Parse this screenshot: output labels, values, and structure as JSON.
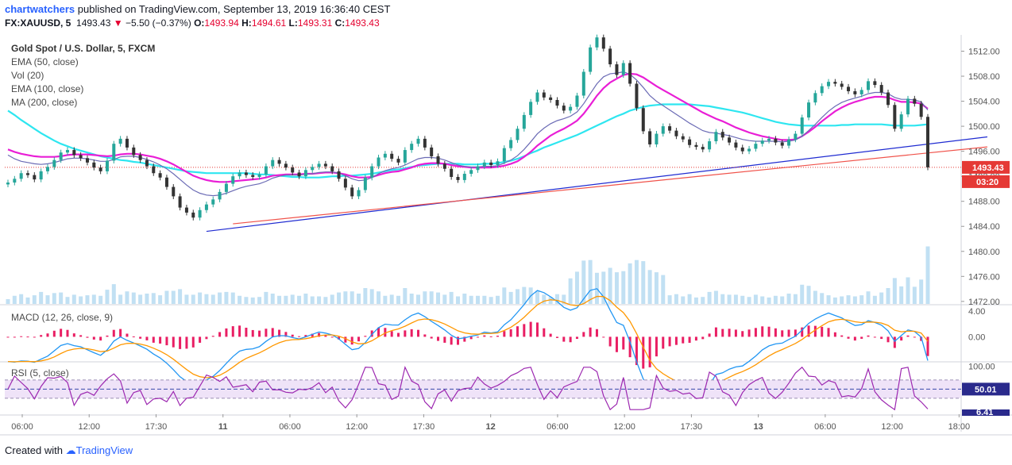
{
  "header": {
    "author": "chartwatchers",
    "published": " published on TradingView.com, September 13, 2019 16:36:40 CEST",
    "symbol": "FX:XAUUSD, 5",
    "last": "1493.43",
    "change": "−5.50 (−0.37%)",
    "o_label": "O:",
    "o_val": "1493.94",
    "h_label": "H:",
    "h_val": "1494.61",
    "l_label": "L:",
    "l_val": "1493.31",
    "c_label": "C:",
    "c_val": "1493.43"
  },
  "legend": {
    "title": "Gold Spot / U.S. Dollar, 5, FXCM",
    "ema50": "EMA (50, close)",
    "vol": "Vol (20)",
    "ema100": "EMA (100, close)",
    "ma200": "MA (200, close)"
  },
  "macd_label": "MACD (12, 26, close, 9)",
  "rsi_label": "RSI (5, close)",
  "footer": {
    "created": "Created with",
    "brand": "TradingView"
  },
  "colors": {
    "up": "#26a69a",
    "down": "#333333",
    "ema50": "#6b6bb5",
    "ema100": "#e91ed6",
    "ma200": "#2ee6f0",
    "trend_blue": "#1f2bd1",
    "trend_red": "#f0524a",
    "price_tag": "#e53935",
    "rsi": "#9c27b0",
    "macd": "#2196f3",
    "signal": "#ff9800",
    "hist": "#e91e63"
  },
  "chart_data": {
    "type": "candlestick",
    "price_axis": {
      "ticks": [
        1472,
        1476,
        1480,
        1484,
        1488,
        1492,
        1496,
        1500,
        1504,
        1508,
        1512
      ],
      "labels": [
        "1472.00",
        "1476.00",
        "1480.00",
        "1484.00",
        "1488.00",
        "1492.00",
        "1496.00",
        "1500.00",
        "1504.00",
        "1508.00",
        "1512.00"
      ],
      "range": [
        1471.6,
        1514.6
      ]
    },
    "time_axis": [
      "06:00",
      "12:00",
      "17:30",
      "11",
      "06:00",
      "12:00",
      "17:30",
      "12",
      "06:00",
      "12:00",
      "17:30",
      "13",
      "06:00",
      "12:00",
      "18:00"
    ],
    "last_price": "1493.43",
    "countdown": "03:20",
    "close_series": [
      1491.0,
      1491.6,
      1492.5,
      1492.2,
      1491.5,
      1492.8,
      1493.5,
      1494.6,
      1495.8,
      1496.2,
      1495.4,
      1494.9,
      1494.2,
      1493.4,
      1492.8,
      1494.5,
      1497.2,
      1498.0,
      1496.6,
      1495.4,
      1494.6,
      1493.6,
      1492.5,
      1491.8,
      1490.3,
      1488.8,
      1487.0,
      1486.2,
      1485.4,
      1486.6,
      1487.5,
      1488.3,
      1489.5,
      1490.8,
      1492.0,
      1492.6,
      1492.2,
      1491.9,
      1492.3,
      1493.6,
      1494.6,
      1494.0,
      1493.4,
      1492.6,
      1492.0,
      1493.0,
      1493.5,
      1494.0,
      1493.6,
      1492.8,
      1491.6,
      1490.2,
      1488.8,
      1489.8,
      1491.8,
      1493.6,
      1495.0,
      1495.6,
      1494.8,
      1494.2,
      1496.2,
      1497.2,
      1498.0,
      1496.6,
      1495.2,
      1494.0,
      1493.2,
      1491.9,
      1491.4,
      1492.4,
      1493.0,
      1493.6,
      1494.2,
      1493.8,
      1494.4,
      1496.5,
      1497.8,
      1499.6,
      1501.8,
      1503.9,
      1505.4,
      1504.6,
      1504.2,
      1503.3,
      1502.5,
      1503.1,
      1504.9,
      1508.7,
      1512.6,
      1514.2,
      1512.4,
      1509.9,
      1508.2,
      1510.1,
      1506.8,
      1502.9,
      1499.2,
      1497.1,
      1498.8,
      1500.0,
      1499.3,
      1498.4,
      1497.9,
      1497.0,
      1496.7,
      1496.3,
      1497.6,
      1499.1,
      1498.2,
      1497.4,
      1496.6,
      1496.0,
      1496.4,
      1497.2,
      1497.7,
      1498.0,
      1497.4,
      1496.9,
      1497.9,
      1498.8,
      1501.4,
      1503.8,
      1505.3,
      1506.4,
      1507.1,
      1506.8,
      1506.3,
      1505.6,
      1505.1,
      1505.8,
      1507.2,
      1506.6,
      1505.4,
      1503.4,
      1499.6,
      1501.9,
      1504.4,
      1503.6,
      1501.5,
      1493.43
    ],
    "ema50_series": [
      1495.4,
      1494.8,
      1494.4,
      1494.2,
      1494.0,
      1493.9,
      1494.0,
      1494.2,
      1494.5,
      1494.8,
      1494.9,
      1494.9,
      1494.8,
      1494.6,
      1494.4,
      1494.4,
      1494.7,
      1495.1,
      1495.2,
      1495.2,
      1495.0,
      1494.7,
      1494.3,
      1493.8,
      1493.2,
      1492.4,
      1491.5,
      1490.6,
      1489.8,
      1489.3,
      1489.0,
      1488.9,
      1489.0,
      1489.3,
      1489.7,
      1490.1,
      1490.4,
      1490.6,
      1490.8,
      1491.2,
      1491.7,
      1492.0,
      1492.2,
      1492.2,
      1492.2,
      1492.3,
      1492.4,
      1492.6,
      1492.7,
      1492.7,
      1492.5,
      1492.1,
      1491.6,
      1491.3,
      1491.4,
      1491.8,
      1492.4,
      1492.9,
      1493.2,
      1493.4,
      1493.8,
      1494.3,
      1494.8,
      1495.0,
      1495.0,
      1494.9,
      1494.6,
      1494.2,
      1493.8,
      1493.6,
      1493.5,
      1493.5,
      1493.6,
      1493.6,
      1493.7,
      1494.1,
      1494.6,
      1495.3,
      1496.3,
      1497.5,
      1498.8,
      1499.7,
      1500.4,
      1500.9,
      1501.2,
      1501.6,
      1502.3,
      1503.6,
      1505.2,
      1506.8,
      1507.9,
      1508.4,
      1508.5,
      1508.7,
      1508.3,
      1507.4,
      1506.2,
      1504.9,
      1504.0,
      1503.3,
      1502.6,
      1501.9,
      1501.2,
      1500.5,
      1499.9,
      1499.3,
      1499.0,
      1498.9,
      1498.7,
      1498.5,
      1498.2,
      1497.9,
      1497.7,
      1497.6,
      1497.6,
      1497.6,
      1497.6,
      1497.5,
      1497.6,
      1497.8,
      1498.4,
      1499.3,
      1500.3,
      1501.4,
      1502.4,
      1503.2,
      1503.8,
      1504.2,
      1504.5,
      1504.8,
      1505.2,
      1505.4,
      1505.4,
      1505.2,
      1504.6,
      1504.3,
      1504.3,
      1504.2,
      1503.9,
      1502.6
    ],
    "ema100_series": [
      1496.3,
      1495.9,
      1495.6,
      1495.4,
      1495.2,
      1495.1,
      1495.1,
      1495.1,
      1495.2,
      1495.4,
      1495.5,
      1495.5,
      1495.5,
      1495.4,
      1495.3,
      1495.2,
      1495.3,
      1495.5,
      1495.6,
      1495.6,
      1495.5,
      1495.3,
      1495.1,
      1494.8,
      1494.4,
      1493.9,
      1493.3,
      1492.7,
      1492.1,
      1491.7,
      1491.4,
      1491.2,
      1491.1,
      1491.1,
      1491.2,
      1491.3,
      1491.4,
      1491.5,
      1491.6,
      1491.8,
      1492.1,
      1492.2,
      1492.3,
      1492.3,
      1492.3,
      1492.4,
      1492.4,
      1492.5,
      1492.6,
      1492.6,
      1492.5,
      1492.3,
      1492.0,
      1491.8,
      1491.8,
      1491.9,
      1492.2,
      1492.5,
      1492.7,
      1492.8,
      1493.1,
      1493.4,
      1493.8,
      1494.0,
      1494.1,
      1494.1,
      1494.0,
      1493.8,
      1493.6,
      1493.5,
      1493.4,
      1493.4,
      1493.4,
      1493.4,
      1493.5,
      1493.7,
      1494.0,
      1494.4,
      1495.1,
      1495.9,
      1496.9,
      1497.7,
      1498.5,
      1499.1,
      1499.6,
      1500.2,
      1500.9,
      1502.0,
      1503.4,
      1504.9,
      1506.1,
      1507.0,
      1507.6,
      1508.2,
      1508.4,
      1508.3,
      1507.8,
      1507.1,
      1506.4,
      1505.8,
      1505.2,
      1504.6,
      1504.0,
      1503.4,
      1502.8,
      1502.2,
      1501.7,
      1501.2,
      1500.8,
      1500.3,
      1499.8,
      1499.4,
      1499.0,
      1498.7,
      1498.4,
      1498.2,
      1498.0,
      1497.8,
      1497.8,
      1497.9,
      1498.4,
      1499.1,
      1499.9,
      1500.8,
      1501.6,
      1502.4,
      1503.0,
      1503.5,
      1503.9,
      1504.2,
      1504.5,
      1504.7,
      1504.7,
      1504.6,
      1504.2,
      1503.9,
      1503.9,
      1503.8,
      1503.6,
      1502.8
    ],
    "ma200_series": [
      1502.5,
      1501.8,
      1501.0,
      1500.3,
      1499.6,
      1498.9,
      1498.3,
      1497.7,
      1497.2,
      1496.8,
      1496.4,
      1496.1,
      1495.8,
      1495.5,
      1495.2,
      1495.0,
      1494.8,
      1494.6,
      1494.5,
      1494.3,
      1494.2,
      1494.0,
      1493.8,
      1493.6,
      1493.4,
      1493.2,
      1493.0,
      1492.8,
      1492.7,
      1492.6,
      1492.5,
      1492.5,
      1492.5,
      1492.5,
      1492.5,
      1492.5,
      1492.5,
      1492.4,
      1492.3,
      1492.3,
      1492.2,
      1492.1,
      1492.0,
      1491.9,
      1491.9,
      1491.8,
      1491.8,
      1491.8,
      1491.9,
      1492.0,
      1492.0,
      1492.1,
      1492.1,
      1492.2,
      1492.3,
      1492.4,
      1492.6,
      1492.8,
      1493.0,
      1493.1,
      1493.3,
      1493.5,
      1493.7,
      1493.8,
      1493.9,
      1494.0,
      1494.0,
      1494.0,
      1494.0,
      1493.9,
      1493.9,
      1493.9,
      1494.0,
      1494.0,
      1494.1,
      1494.3,
      1494.5,
      1494.8,
      1495.2,
      1495.7,
      1496.1,
      1496.6,
      1497.0,
      1497.4,
      1497.8,
      1498.2,
      1498.6,
      1499.1,
      1499.6,
      1500.1,
      1500.6,
      1501.1,
      1501.6,
      1502.0,
      1502.5,
      1502.8,
      1503.1,
      1503.3,
      1503.4,
      1503.5,
      1503.5,
      1503.5,
      1503.5,
      1503.5,
      1503.4,
      1503.3,
      1503.2,
      1503.0,
      1502.8,
      1502.6,
      1502.4,
      1502.2,
      1501.9,
      1501.6,
      1501.3,
      1501.0,
      1500.7,
      1500.5,
      1500.3,
      1500.2,
      1500.1,
      1500.1,
      1500.1,
      1500.1,
      1500.1,
      1500.1,
      1500.2,
      1500.2,
      1500.3,
      1500.3,
      1500.3,
      1500.3,
      1500.3,
      1500.2,
      1500.1,
      1500.1,
      1500.1,
      1500.1,
      1500.2,
      1500.3
    ],
    "trendlines": [
      {
        "name": "blue-trendline",
        "from": [
          30,
          1483.2
        ],
        "to": [
          148,
          1498.3
        ]
      },
      {
        "name": "red-trendline",
        "from": [
          34,
          1484.4
        ],
        "to": [
          148,
          1496.7
        ]
      }
    ],
    "macd_axis": {
      "ticks": [
        4.0,
        0.0
      ],
      "labels": [
        "4.00",
        "0.00"
      ],
      "range": [
        -3.8,
        4.9
      ]
    },
    "rsi_axis": {
      "ticks": [
        100
      ],
      "labels": [
        "100.00"
      ],
      "range": [
        -5,
        108
      ],
      "band": [
        30,
        70
      ],
      "mid": 50,
      "last": "50.01",
      "last_low": "6.41"
    }
  }
}
